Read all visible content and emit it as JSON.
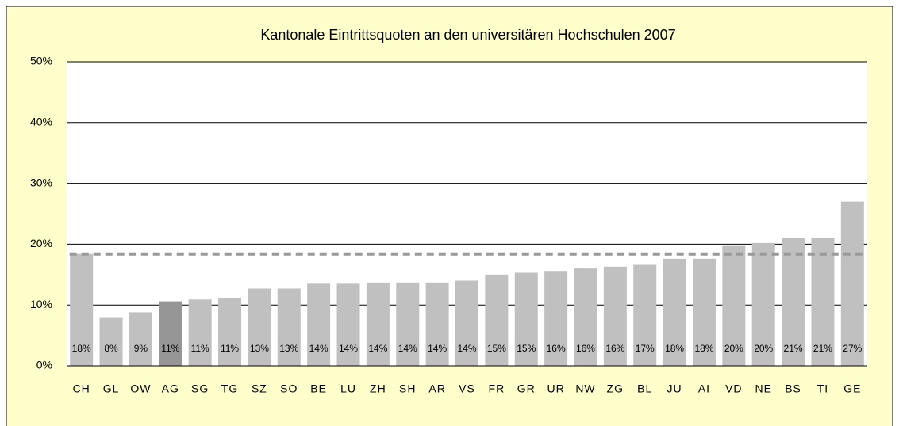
{
  "chart_data": {
    "type": "bar",
    "title": "Kantonale Eintrittsquoten an den universitären Hochschulen 2007",
    "categories": [
      "CH",
      "GL",
      "OW",
      "AG",
      "SG",
      "TG",
      "SZ",
      "SO",
      "BE",
      "LU",
      "ZH",
      "SH",
      "AR",
      "VS",
      "FR",
      "GR",
      "UR",
      "NW",
      "ZG",
      "BL",
      "JU",
      "AI",
      "VD",
      "NE",
      "BS",
      "TI",
      "GE"
    ],
    "values": [
      18.4,
      8.0,
      8.8,
      10.6,
      10.9,
      11.2,
      12.7,
      12.7,
      13.5,
      13.5,
      13.7,
      13.7,
      13.7,
      14.0,
      15.0,
      15.3,
      15.6,
      16.0,
      16.3,
      16.6,
      17.6,
      17.6,
      19.7,
      20.2,
      21.0,
      21.0,
      27.0
    ],
    "value_labels": [
      "18%",
      "8%",
      "9%",
      "11%",
      "11%",
      "11%",
      "13%",
      "13%",
      "14%",
      "14%",
      "14%",
      "14%",
      "14%",
      "14%",
      "15%",
      "15%",
      "16%",
      "16%",
      "16%",
      "17%",
      "18%",
      "18%",
      "20%",
      "20%",
      "21%",
      "21%",
      "27%"
    ],
    "color": "#c0c0c0",
    "highlight_category": "AG",
    "highlight_color": "#969696",
    "average_line": 18.4,
    "average_color": "#999999",
    "ylim": [
      0,
      50
    ],
    "yticks": [
      {
        "value": 0,
        "label": "0%"
      },
      {
        "value": 10,
        "label": "10%"
      },
      {
        "value": 20,
        "label": "20%"
      },
      {
        "value": 30,
        "label": "30%"
      },
      {
        "value": 40,
        "label": "40%"
      },
      {
        "value": 50,
        "label": "50%"
      }
    ],
    "grid": true
  }
}
